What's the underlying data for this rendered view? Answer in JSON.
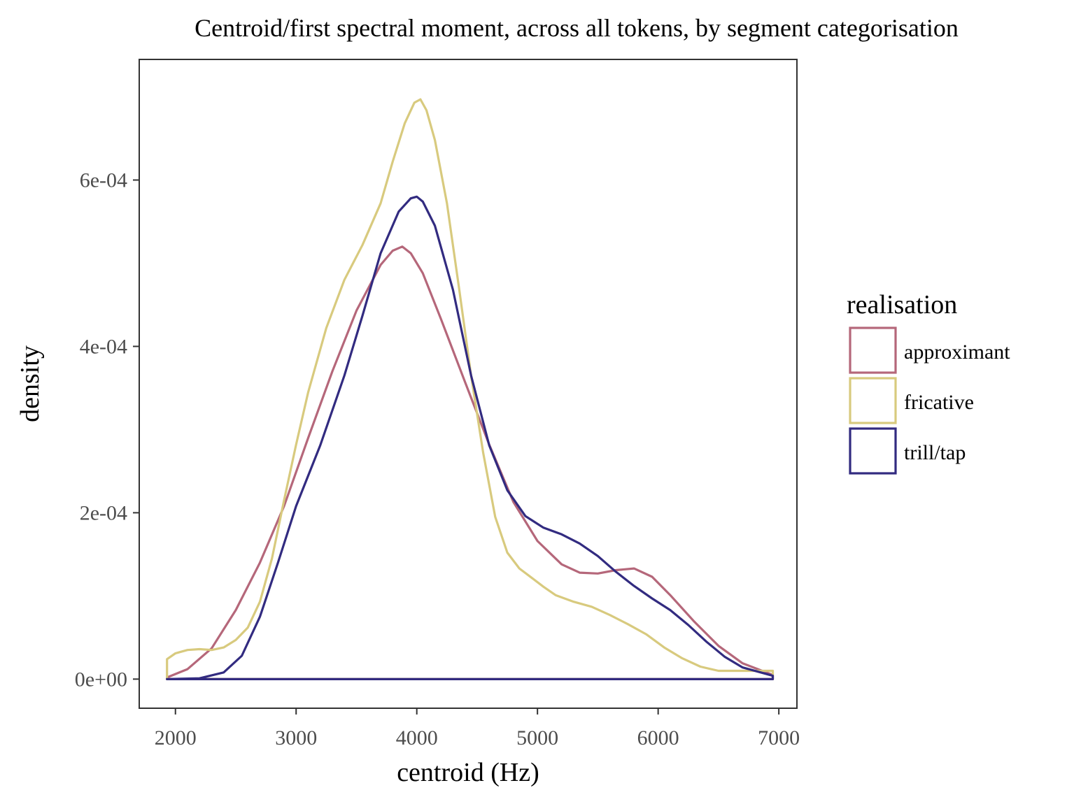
{
  "chart_data": {
    "type": "area",
    "title": "Centroid/first spectral moment, across all tokens, by segment categorisation",
    "xlabel": "centroid (Hz)",
    "ylabel": "density",
    "xlim": [
      1700,
      7150
    ],
    "ylim": [
      -3.5e-05,
      0.000745
    ],
    "x_ticks": [
      2000,
      3000,
      4000,
      5000,
      6000,
      7000
    ],
    "x_tick_labels": [
      "2000",
      "3000",
      "4000",
      "5000",
      "6000",
      "7000"
    ],
    "y_ticks": [
      0,
      0.0002,
      0.0004,
      0.0006
    ],
    "y_tick_labels": [
      "0e+00",
      "2e-04",
      "4e-04",
      "6e-04"
    ],
    "grid": false,
    "legend": {
      "title": "realisation",
      "position": "right"
    },
    "series": [
      {
        "name": "approximant",
        "color": "#B5677A",
        "points": [
          [
            1930,
            2e-06
          ],
          [
            2100,
            1.2e-05
          ],
          [
            2300,
            3.7e-05
          ],
          [
            2500,
            8.3e-05
          ],
          [
            2700,
            0.00014
          ],
          [
            2900,
            0.000208
          ],
          [
            3100,
            0.00029
          ],
          [
            3300,
            0.00037
          ],
          [
            3500,
            0.000443
          ],
          [
            3700,
            0.000498
          ],
          [
            3800,
            0.000515
          ],
          [
            3880,
            0.00052
          ],
          [
            3950,
            0.000512
          ],
          [
            4050,
            0.000488
          ],
          [
            4200,
            0.000433
          ],
          [
            4400,
            0.000357
          ],
          [
            4600,
            0.000282
          ],
          [
            4800,
            0.000213
          ],
          [
            5000,
            0.000166
          ],
          [
            5200,
            0.000138
          ],
          [
            5350,
            0.000128
          ],
          [
            5500,
            0.000127
          ],
          [
            5650,
            0.000131
          ],
          [
            5800,
            0.000133
          ],
          [
            5950,
            0.000123
          ],
          [
            6100,
            0.000101
          ],
          [
            6300,
            6.9e-05
          ],
          [
            6500,
            4e-05
          ],
          [
            6700,
            1.9e-05
          ],
          [
            6950,
            5e-06
          ]
        ]
      },
      {
        "name": "fricative",
        "color": "#D8CA7E",
        "points": [
          [
            1930,
            2.4e-05
          ],
          [
            2000,
            3.1e-05
          ],
          [
            2100,
            3.5e-05
          ],
          [
            2200,
            3.6e-05
          ],
          [
            2300,
            3.5e-05
          ],
          [
            2400,
            3.8e-05
          ],
          [
            2500,
            4.7e-05
          ],
          [
            2600,
            6.2e-05
          ],
          [
            2700,
            9.3e-05
          ],
          [
            2800,
            0.000145
          ],
          [
            2900,
            0.000215
          ],
          [
            3000,
            0.000282
          ],
          [
            3100,
            0.000345
          ],
          [
            3250,
            0.000422
          ],
          [
            3400,
            0.00048
          ],
          [
            3550,
            0.000522
          ],
          [
            3700,
            0.000572
          ],
          [
            3800,
            0.000622
          ],
          [
            3900,
            0.000668
          ],
          [
            3980,
            0.000693
          ],
          [
            4030,
            0.000697
          ],
          [
            4080,
            0.000684
          ],
          [
            4150,
            0.000648
          ],
          [
            4250,
            0.000572
          ],
          [
            4350,
            0.00047
          ],
          [
            4450,
            0.000365
          ],
          [
            4550,
            0.000272
          ],
          [
            4650,
            0.000195
          ],
          [
            4750,
            0.000152
          ],
          [
            4850,
            0.000133
          ],
          [
            4950,
            0.000122
          ],
          [
            5050,
            0.000111
          ],
          [
            5150,
            0.000101
          ],
          [
            5300,
            9.3e-05
          ],
          [
            5450,
            8.7e-05
          ],
          [
            5600,
            7.7e-05
          ],
          [
            5750,
            6.6e-05
          ],
          [
            5900,
            5.4e-05
          ],
          [
            6050,
            3.8e-05
          ],
          [
            6200,
            2.5e-05
          ],
          [
            6350,
            1.5e-05
          ],
          [
            6500,
            1e-05
          ],
          [
            6700,
            1e-05
          ],
          [
            6950,
            1e-05
          ]
        ]
      },
      {
        "name": "trill/tap",
        "color": "#322B80",
        "points": [
          [
            1930,
            0
          ],
          [
            2200,
            1e-06
          ],
          [
            2400,
            8e-06
          ],
          [
            2550,
            2.8e-05
          ],
          [
            2700,
            7.5e-05
          ],
          [
            2850,
            0.00014
          ],
          [
            3000,
            0.000208
          ],
          [
            3200,
            0.000281
          ],
          [
            3400,
            0.000365
          ],
          [
            3550,
            0.000437
          ],
          [
            3700,
            0.000512
          ],
          [
            3850,
            0.000562
          ],
          [
            3950,
            0.000578
          ],
          [
            4000,
            0.00058
          ],
          [
            4050,
            0.000574
          ],
          [
            4150,
            0.000545
          ],
          [
            4300,
            0.000468
          ],
          [
            4450,
            0.000365
          ],
          [
            4600,
            0.000281
          ],
          [
            4750,
            0.000227
          ],
          [
            4900,
            0.000196
          ],
          [
            5050,
            0.000182
          ],
          [
            5200,
            0.000174
          ],
          [
            5350,
            0.000163
          ],
          [
            5500,
            0.000148
          ],
          [
            5650,
            0.000129
          ],
          [
            5800,
            0.000112
          ],
          [
            5950,
            9.7e-05
          ],
          [
            6100,
            8.3e-05
          ],
          [
            6250,
            6.5e-05
          ],
          [
            6400,
            4.5e-05
          ],
          [
            6550,
            2.7e-05
          ],
          [
            6700,
            1.4e-05
          ],
          [
            6950,
            4e-06
          ]
        ]
      }
    ]
  }
}
